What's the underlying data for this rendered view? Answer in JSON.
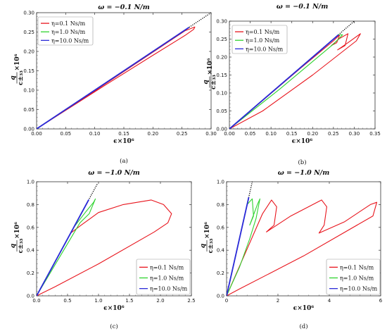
{
  "chart_data": [
    {
      "id": "a",
      "type": "line",
      "title": "ω = −0.1 N/m",
      "xlabel": "ϵ×10⁶",
      "ylabel_num": "q",
      "ylabel_den": "c±₃₃",
      "ylabel_suffix": "×10⁶",
      "caption": "(a)",
      "xlim": [
        0,
        0.3
      ],
      "ylim": [
        0,
        0.3
      ],
      "xticks": [
        "0.00",
        "0.05",
        "0.10",
        "0.15",
        "0.20",
        "0.25",
        "0.30"
      ],
      "yticks": [
        "0.00",
        "0.05",
        "0.10",
        "0.15",
        "0.20",
        "0.25",
        "0.30"
      ],
      "legend_position": "top-left",
      "reference_line": {
        "x": [
          0,
          0.3
        ],
        "y": [
          0,
          0.3
        ],
        "style": "dotted"
      },
      "series": [
        {
          "name": "η=0.1 Ns/m",
          "color": "#e8141c",
          "x": [
            0,
            0.08,
            0.16,
            0.22,
            0.255,
            0.272,
            0.27,
            0.255,
            0.2,
            0.12,
            0.05,
            0
          ],
          "y": [
            0,
            0.078,
            0.158,
            0.218,
            0.253,
            0.263,
            0.257,
            0.241,
            0.19,
            0.115,
            0.048,
            0
          ]
        },
        {
          "name": "η=1.0 Ns/m",
          "color": "#2fd32f",
          "x": [
            0,
            0.262
          ],
          "y": [
            0,
            0.262
          ]
        },
        {
          "name": "η=10.0 Ns/m",
          "color": "#2a2ad8",
          "x": [
            0,
            0.262
          ],
          "y": [
            0,
            0.262
          ]
        }
      ]
    },
    {
      "id": "b",
      "type": "line",
      "title": "ω = −0.1 N/m",
      "xlabel": "ϵ×10⁶",
      "ylabel_num": "q",
      "ylabel_den": "c±₃₃",
      "ylabel_suffix": "×10⁶",
      "caption": "(b)",
      "xlim": [
        0,
        0.35
      ],
      "ylim": [
        0,
        0.3
      ],
      "xticks": [
        "0.00",
        "0.05",
        "0.10",
        "0.15",
        "0.20",
        "0.25",
        "0.30",
        "0.35"
      ],
      "yticks": [
        "0.00",
        "0.05",
        "0.10",
        "0.15",
        "0.20",
        "0.25",
        "0.30"
      ],
      "legend_position": "top-left",
      "reference_line": {
        "x": [
          0,
          0.3
        ],
        "y": [
          0,
          0.3
        ],
        "style": "dotted"
      },
      "series": [
        {
          "name": "η=0.1 Ns/m",
          "color": "#e8141c",
          "x": [
            0,
            0.17,
            0.25,
            0.265,
            0.258,
            0.245,
            0.265,
            0.285,
            0.278,
            0.26,
            0.285,
            0.315,
            0.305,
            0.2,
            0.08,
            0
          ],
          "y": [
            0,
            0.168,
            0.245,
            0.262,
            0.24,
            0.232,
            0.252,
            0.265,
            0.232,
            0.22,
            0.24,
            0.265,
            0.245,
            0.15,
            0.05,
            0
          ]
        },
        {
          "name": "η=1.0 Ns/m",
          "color": "#2fd32f",
          "x": [
            0,
            0.262,
            0.272,
            0.25,
            0.12,
            0
          ],
          "y": [
            0,
            0.262,
            0.262,
            0.236,
            0.11,
            0
          ]
        },
        {
          "name": "η=10.0 Ns/m",
          "color": "#2a2ad8",
          "x": [
            0,
            0.262
          ],
          "y": [
            0,
            0.262
          ]
        }
      ]
    },
    {
      "id": "c",
      "type": "line",
      "title": "ω = −1.0 N/m",
      "xlabel": "ϵ×10⁶",
      "ylabel_num": "q",
      "ylabel_den": "c±₃₃",
      "ylabel_suffix": "×10⁶",
      "caption": "(c)",
      "xlim": [
        0,
        2.5
      ],
      "ylim": [
        0,
        1.0
      ],
      "xticks": [
        "0.0",
        "0.5",
        "1.0",
        "1.5",
        "2.0",
        "2.5"
      ],
      "yticks": [
        "0.0",
        "0.2",
        "0.4",
        "0.6",
        "0.8",
        "1.0"
      ],
      "legend_position": "bottom-right",
      "reference_line": {
        "x": [
          0,
          0.98
        ],
        "y": [
          0,
          0.98
        ],
        "style": "dotted"
      },
      "series": [
        {
          "name": "η=0.1 Ns/m",
          "color": "#e8141c",
          "x": [
            0,
            0.55,
            0.72,
            1.0,
            1.4,
            1.85,
            2.05,
            2.18,
            2.12,
            1.9,
            1.0,
            0.3,
            0
          ],
          "y": [
            0,
            0.55,
            0.62,
            0.73,
            0.8,
            0.84,
            0.8,
            0.72,
            0.64,
            0.56,
            0.28,
            0.08,
            0
          ]
        },
        {
          "name": "η=1.0 Ns/m",
          "color": "#2fd32f",
          "x": [
            0,
            0.6,
            0.8,
            0.92,
            0.95,
            0.85,
            0.7,
            0.35,
            0
          ],
          "y": [
            0,
            0.6,
            0.74,
            0.82,
            0.85,
            0.72,
            0.64,
            0.32,
            0
          ]
        },
        {
          "name": "η=10.0 Ns/m",
          "color": "#2a2ad8",
          "x": [
            0,
            0.82,
            0.84,
            0.6,
            0
          ],
          "y": [
            0,
            0.82,
            0.84,
            0.6,
            0
          ]
        }
      ]
    },
    {
      "id": "d",
      "type": "line",
      "title": "ω = −1.0 N/m",
      "xlabel": "ϵ×10⁶",
      "ylabel_num": "q",
      "ylabel_den": "c±₃₃",
      "ylabel_suffix": "×10⁶",
      "caption": "(d)",
      "xlim": [
        0,
        6
      ],
      "ylim": [
        0,
        1.0
      ],
      "xticks": [
        "0",
        "2",
        "4",
        "6"
      ],
      "yticks": [
        "0.0",
        "0.2",
        "0.4",
        "0.6",
        "0.8",
        "1.0"
      ],
      "legend_position": "bottom-right",
      "reference_line": {
        "x": [
          0,
          1.0
        ],
        "y": [
          0,
          1.0
        ],
        "style": "dotted"
      },
      "series": [
        {
          "name": "η=0.1 Ns/m",
          "color": "#e8141c",
          "x": [
            0,
            1.4,
            1.75,
            1.95,
            1.85,
            1.55,
            2.5,
            3.7,
            3.9,
            3.8,
            3.6,
            4.6,
            5.6,
            5.85,
            5.7,
            3.0,
            0.5,
            0
          ],
          "y": [
            0,
            0.72,
            0.84,
            0.78,
            0.62,
            0.56,
            0.7,
            0.84,
            0.78,
            0.62,
            0.55,
            0.65,
            0.8,
            0.82,
            0.7,
            0.35,
            0.06,
            0
          ]
        },
        {
          "name": "η=1.0 Ns/m",
          "color": "#2fd32f",
          "x": [
            0,
            0.8,
            1.0,
            1.05,
            0.9,
            1.2,
            1.3,
            1.15,
            0.9,
            0.5,
            0
          ],
          "y": [
            0,
            0.8,
            0.85,
            0.7,
            0.62,
            0.8,
            0.85,
            0.68,
            0.5,
            0.25,
            0
          ]
        },
        {
          "name": "η=10.0 Ns/m",
          "color": "#2a2ad8",
          "x": [
            0,
            0.84,
            0.86,
            0.6,
            0
          ],
          "y": [
            0,
            0.84,
            0.86,
            0.6,
            0
          ]
        }
      ]
    }
  ]
}
